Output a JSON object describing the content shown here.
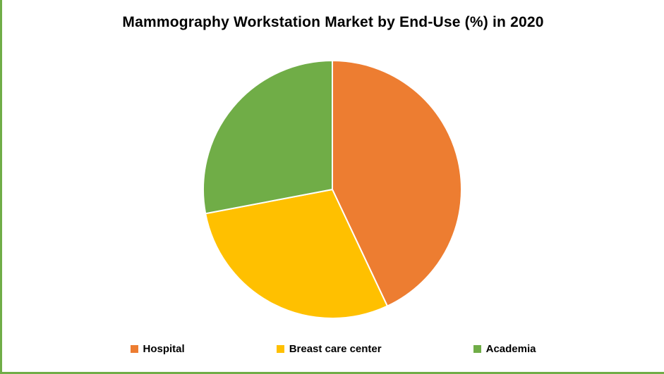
{
  "chart_data": {
    "type": "pie",
    "title": "Mammography Workstation Market by End-Use (%) in 2020",
    "categories": [
      "Hospital",
      "Breast care center",
      "Academia"
    ],
    "values": [
      43,
      29,
      28
    ],
    "colors": [
      "#ED7D31",
      "#FFC000",
      "#70AD47"
    ],
    "start_angle_deg": 0,
    "direction": "clockwise",
    "legend_position": "bottom",
    "slice_gap_color": "#ffffff",
    "border_color": "#70AD47"
  }
}
